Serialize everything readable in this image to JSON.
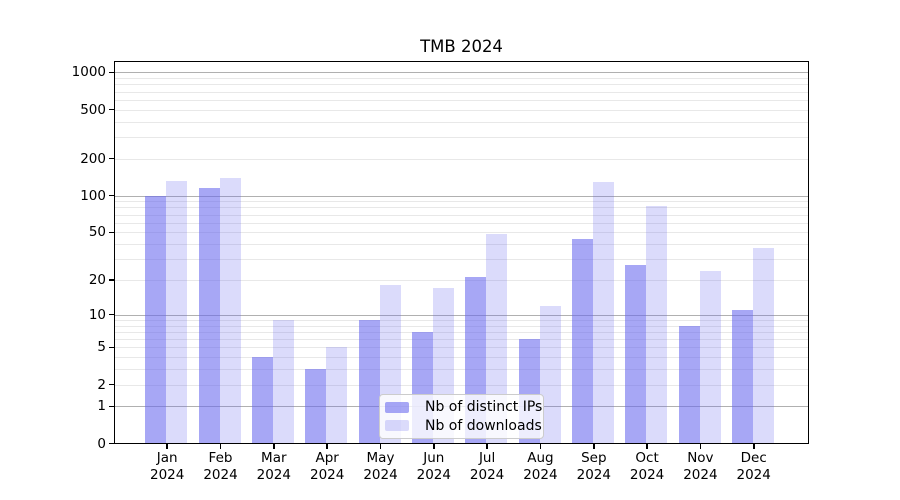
{
  "title": "TMB 2024",
  "year_label": "2024",
  "chart_data": {
    "type": "bar",
    "title": "TMB 2024",
    "categories": [
      "Jan 2024",
      "Feb 2024",
      "Mar 2024",
      "Apr 2024",
      "May 2024",
      "Jun 2024",
      "Jul 2024",
      "Aug 2024",
      "Sep 2024",
      "Oct 2024",
      "Nov 2024",
      "Dec 2024"
    ],
    "x_tick_months": [
      "Jan",
      "Feb",
      "Mar",
      "Apr",
      "May",
      "Jun",
      "Jul",
      "Aug",
      "Sep",
      "Oct",
      "Nov",
      "Dec"
    ],
    "x_tick_year": "2024",
    "series": [
      {
        "name": "Nb of distinct IPs",
        "slug": "distinct-ips",
        "values": [
          100,
          116,
          4,
          3,
          9,
          7,
          21,
          6,
          44,
          27,
          8,
          11
        ]
      },
      {
        "name": "Nb of downloads",
        "slug": "downloads",
        "values": [
          132,
          138,
          9,
          5,
          18,
          17,
          48,
          12,
          130,
          82,
          24,
          37
        ]
      }
    ],
    "y_axis": {
      "scale": "log10(value+1)",
      "ticks": [
        0,
        1,
        2,
        5,
        10,
        20,
        50,
        100,
        200,
        500,
        1000
      ],
      "tick_labels": [
        "0",
        "1",
        "2",
        "5",
        "10",
        "20",
        "50",
        "100",
        "200",
        "500",
        "1000"
      ],
      "major_gridlines": [
        1,
        10,
        100,
        1000
      ],
      "minor_gridlines": [
        2,
        3,
        4,
        5,
        6,
        7,
        8,
        9,
        20,
        30,
        40,
        50,
        60,
        70,
        80,
        90,
        200,
        300,
        400,
        500,
        600,
        700,
        800,
        900
      ],
      "range": [
        0,
        1200
      ]
    },
    "legend_position": "lower-center-inside",
    "grid": true
  },
  "colors": {
    "bar_base": "#6767ee",
    "bar_alpha_distinct_ips": 0.58,
    "bar_alpha_downloads": 0.235,
    "bar_distinct_ips_hex": "#a9a9f4",
    "bar_downloads_hex": "#dcdcfa",
    "grid_major": "#b0b0b0",
    "grid_minor": "#e8e8e8",
    "axis": "#000000",
    "text": "#000000",
    "legend_border": "#cccccc"
  }
}
